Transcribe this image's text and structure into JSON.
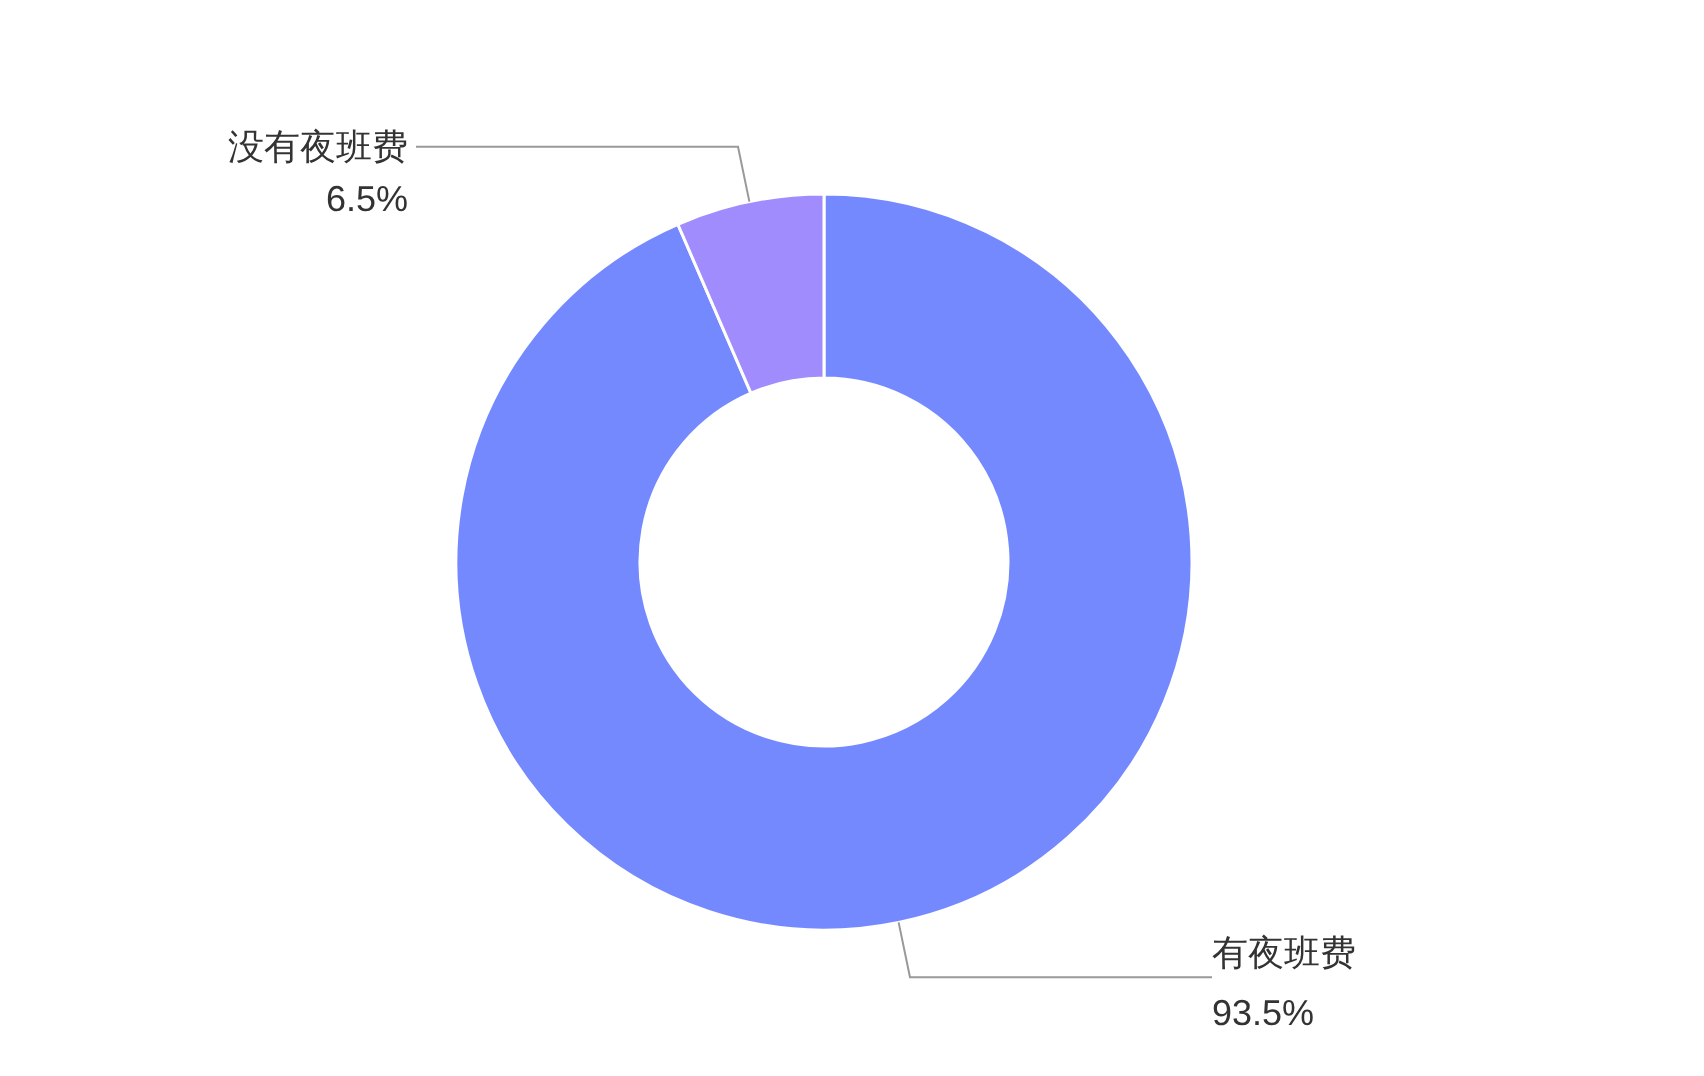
{
  "chart_data": {
    "type": "donut",
    "categories": [
      "有夜班费",
      "没有夜班费"
    ],
    "values": [
      93.5,
      6.5
    ],
    "colors": [
      "#7589ff",
      "#a08cfc"
    ],
    "value_labels": [
      "93.5%",
      "6.5%"
    ]
  }
}
